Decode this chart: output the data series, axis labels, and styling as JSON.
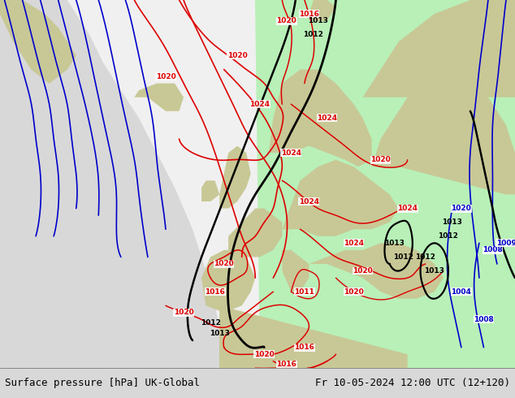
{
  "title_left": "Surface pressure [hPa] UK-Global",
  "title_right": "Fr 10-05-2024 12:00 UTC (12+120)",
  "figsize": [
    6.34,
    4.9
  ],
  "dpi": 100,
  "footer_fontsize": 9,
  "footer_bg": "#d8d8d8",
  "map_grey": "#b8b8b8",
  "white_area": "#f0f0f0",
  "green_area": "#b8f0b8",
  "land_color": "#c8c896",
  "red": "#dd0000",
  "blue": "#0000cc",
  "black": "#000000",
  "xlim": [
    -55,
    60
  ],
  "ylim": [
    27,
    80
  ]
}
